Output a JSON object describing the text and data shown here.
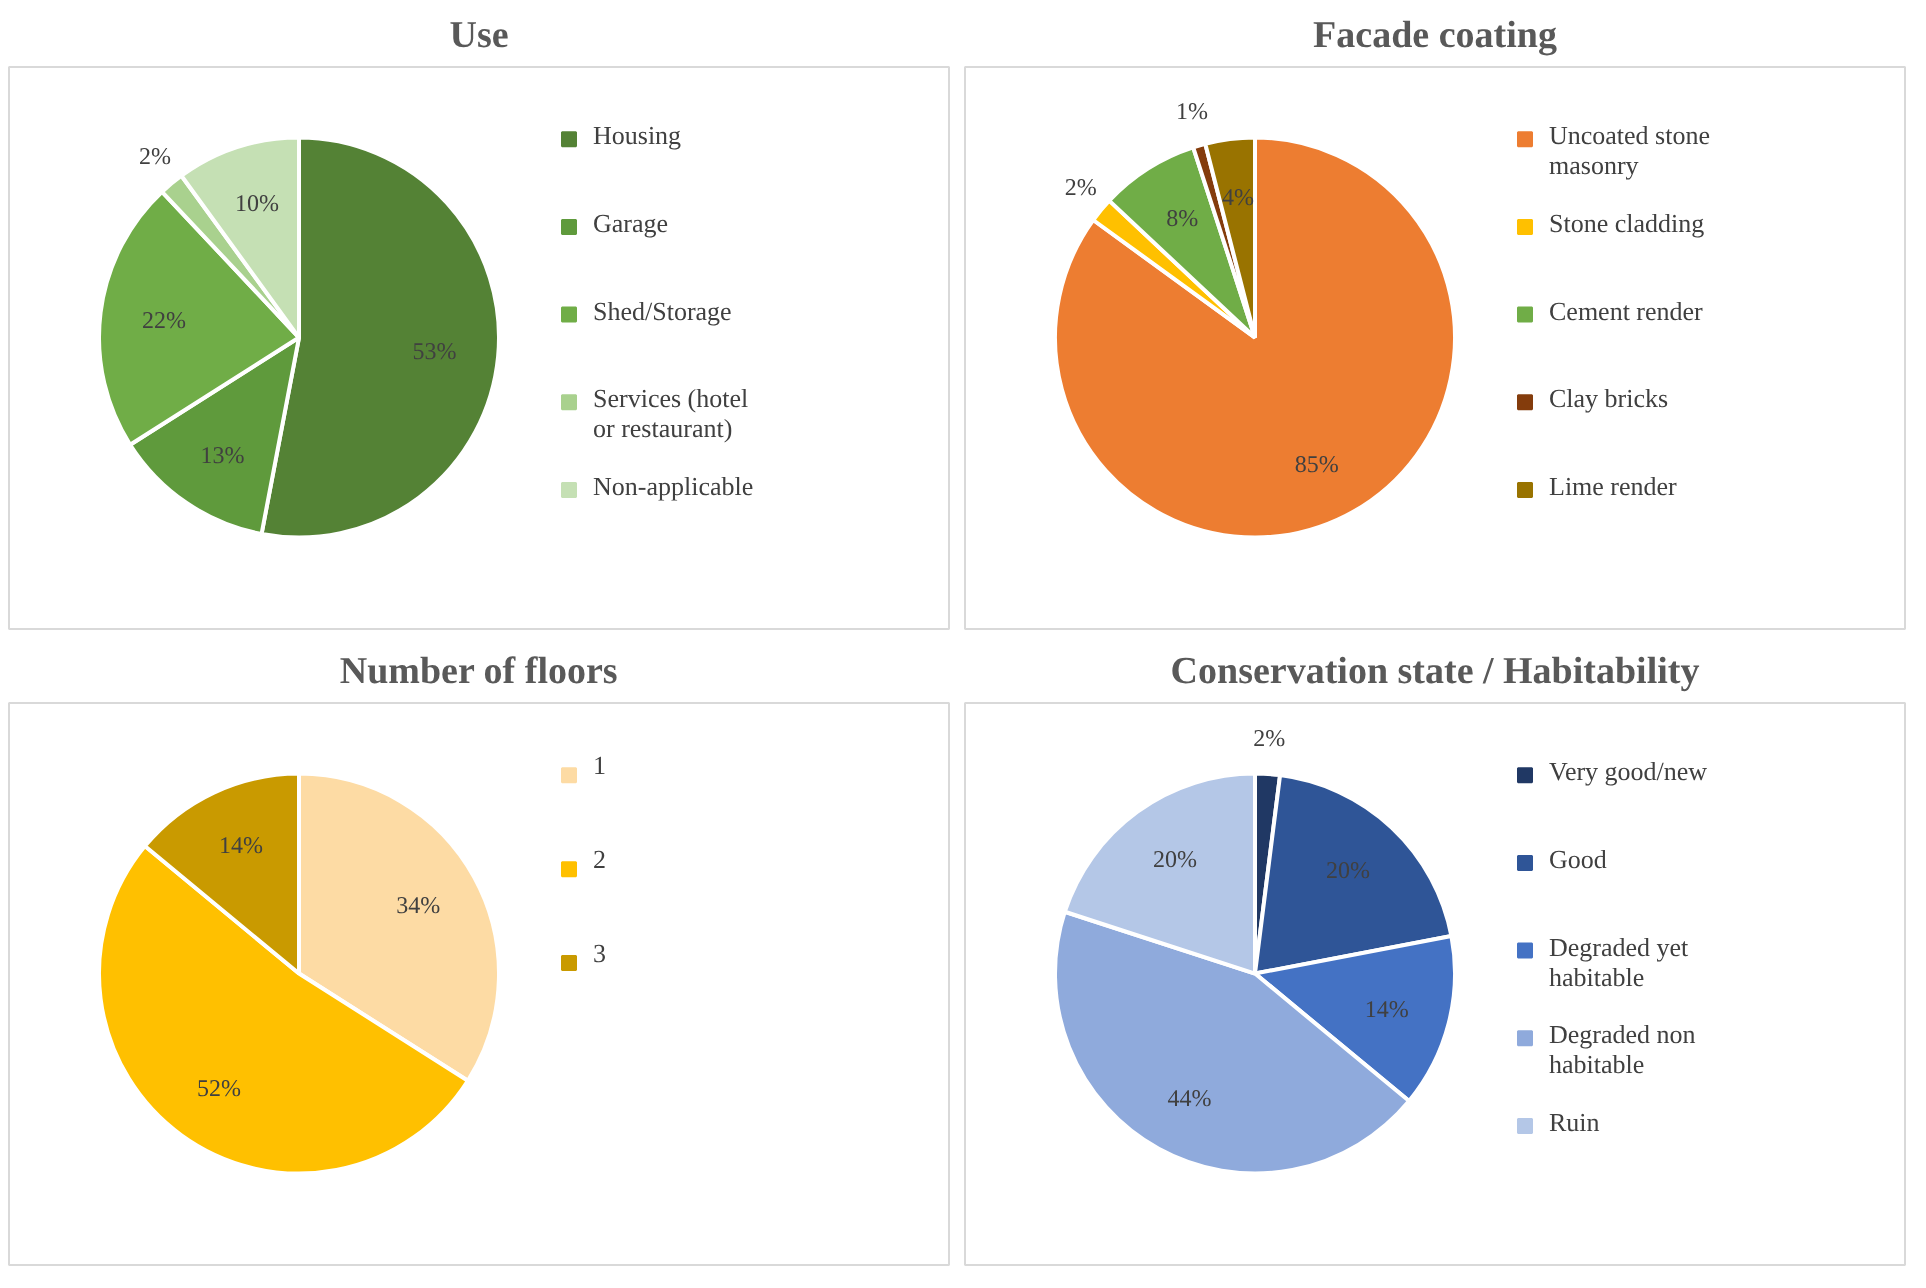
{
  "chart_data": [
    {
      "type": "pie",
      "title": "Use",
      "legend": "right",
      "categories": [
        "Housing",
        "Garage",
        "Shed/Storage",
        "Services (hotel or restaurant)",
        "Non-applicable"
      ],
      "values": [
        53,
        13,
        22,
        2,
        10
      ],
      "value_labels": [
        "53%",
        "13%",
        "22%",
        "2%",
        "10%"
      ],
      "colors": [
        "#548235",
        "#5f9a3c",
        "#70ad47",
        "#a9d18e",
        "#c5e0b4"
      ]
    },
    {
      "type": "pie",
      "title": "Facade coating",
      "legend": "right",
      "categories": [
        "Uncoated stone masonry",
        "Stone cladding",
        "Cement render",
        "Clay bricks",
        "Lime render"
      ],
      "values": [
        85,
        2,
        8,
        1,
        4
      ],
      "value_labels": [
        "85%",
        "2%",
        "8%",
        "1%",
        "4%"
      ],
      "colors": [
        "#ed7d31",
        "#ffc000",
        "#70ad47",
        "#843c0c",
        "#997300"
      ]
    },
    {
      "type": "pie",
      "title": "Number of floors",
      "legend": "right",
      "categories": [
        "1",
        "2",
        "3"
      ],
      "values": [
        34,
        52,
        14
      ],
      "value_labels": [
        "34%",
        "52%",
        "14%"
      ],
      "colors": [
        "#fddba4",
        "#ffc000",
        "#c99a00"
      ]
    },
    {
      "type": "pie",
      "title": "Conservation state / Habitability",
      "legend": "right",
      "categories": [
        "Very good/new",
        "Good",
        "Degraded yet habitable",
        "Degraded non habitable",
        "Ruin"
      ],
      "values": [
        2,
        20,
        14,
        44,
        20
      ],
      "value_labels": [
        "2%",
        "20%",
        "14%",
        "44%",
        "20%"
      ],
      "colors": [
        "#203864",
        "#2f5597",
        "#4472c4",
        "#8faadc",
        "#b4c7e7"
      ]
    }
  ]
}
